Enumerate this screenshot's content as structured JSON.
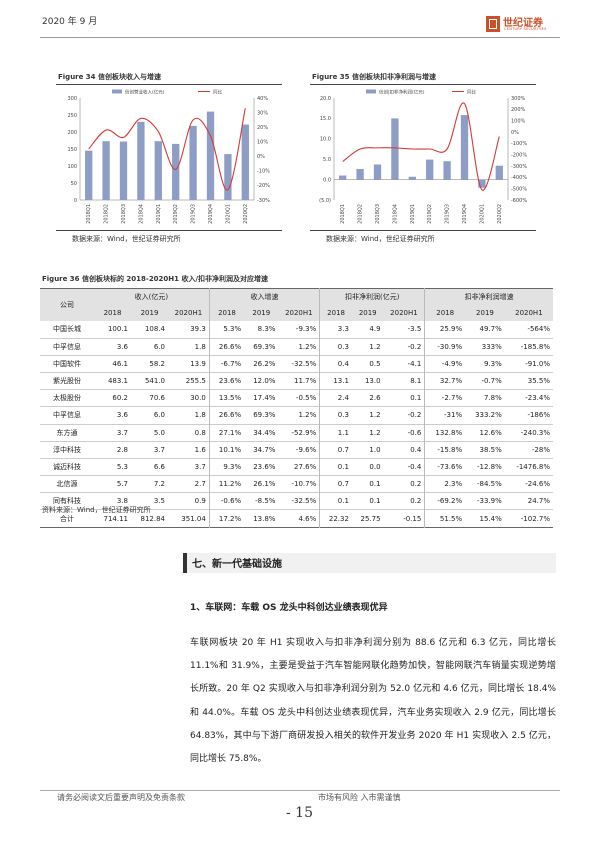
{
  "header": {
    "date": "2020 年 9 月",
    "logo_cn": "世纪证券",
    "logo_en": "CENTURY SECURITIES"
  },
  "figure34": {
    "title": "Figure 34 信创板块收入与增速",
    "source": "数据来源：Wind，世纪证券研究所"
  },
  "figure35": {
    "title": "Figure 35 信创板块扣非净利润与增速",
    "source": "数据来源：Wind，世纪证券研究所"
  },
  "chart_data": [
    {
      "type": "bar",
      "title": "Figure 34 信创板块收入与增速",
      "categories": [
        "2018Q1",
        "2018Q2",
        "2018Q3",
        "2018Q4",
        "2019Q1",
        "2019Q2",
        "2019Q3",
        "2019Q4",
        "2020Q1",
        "2020Q2"
      ],
      "series": [
        {
          "name": "信创营业收入(亿元)",
          "type": "bar",
          "axis": "left",
          "color": "#8e9dc6",
          "values": [
            145,
            173,
            172,
            230,
            173,
            165,
            218,
            260,
            135,
            222
          ]
        },
        {
          "name": "同比",
          "type": "line",
          "axis": "right",
          "color": "#d23a35",
          "values": [
            5,
            18,
            13,
            26,
            17,
            -9,
            25,
            14,
            -23,
            33
          ]
        }
      ],
      "ylim": [
        0,
        300
      ],
      "y_ticks": [
        "0",
        "50",
        "100",
        "150",
        "200",
        "250",
        "300"
      ],
      "y2lim": [
        -30,
        40
      ],
      "y2_ticks": [
        "-30%",
        "-20%",
        "-10%",
        "0%",
        "10%",
        "20%",
        "30%",
        "40%"
      ],
      "legend": "top",
      "grid": false
    },
    {
      "type": "bar",
      "title": "Figure 35 信创板块扣非净利润与增速",
      "categories": [
        "2018Q1",
        "2018Q2",
        "2018Q3",
        "2018Q4",
        "2019Q1",
        "2019Q2",
        "2019Q3",
        "2019Q4",
        "2020Q1",
        "2020Q2"
      ],
      "series": [
        {
          "name": "信创|扣非净利润(亿元)",
          "type": "bar",
          "axis": "left",
          "color": "#8e9dc6",
          "values": [
            1.0,
            2.6,
            3.7,
            15.0,
            0.7,
            4.9,
            4.5,
            15.8,
            -2.0,
            3.4
          ]
        },
        {
          "name": "同比",
          "type": "line",
          "axis": "right",
          "color": "#d23a35",
          "values": [
            -260,
            -150,
            -140,
            -140,
            -150,
            -150,
            -150,
            250,
            -510,
            -40
          ]
        }
      ],
      "ylim": [
        -5,
        20
      ],
      "y_ticks": [
        "(5.0)",
        "0.0",
        "5.0",
        "10.0",
        "15.0",
        "20.0"
      ],
      "y2lim": [
        -600,
        300
      ],
      "y2_ticks": [
        "-600%",
        "-500%",
        "-400%",
        "-300%",
        "-200%",
        "-100%",
        "0%",
        "100%",
        "200%",
        "300%"
      ],
      "legend": "top",
      "grid": false
    }
  ],
  "table36": {
    "title": "Figure 36 信创板块标的 2018-2020H1 收入/扣非净利润及对应增速",
    "col_company": "公司",
    "groups": [
      "收入(亿元)",
      "收入增速",
      "扣非净利润(亿元)",
      "扣非净利润增速"
    ],
    "years": [
      "2018",
      "2019",
      "2020H1"
    ],
    "rows": [
      [
        "中国长城",
        "100.1",
        "108.4",
        "39.3",
        "5.3%",
        "8.3%",
        "-9.3%",
        "3.3",
        "4.9",
        "-3.5",
        "25.9%",
        "49.7%",
        "-564%"
      ],
      [
        "中孚信息",
        "3.6",
        "6.0",
        "1.8",
        "26.6%",
        "69.3%",
        "1.2%",
        "0.3",
        "1.2",
        "-0.2",
        "-30.9%",
        "333%",
        "-185.8%"
      ],
      [
        "中国软件",
        "46.1",
        "58.2",
        "13.9",
        "-6.7%",
        "26.2%",
        "-32.5%",
        "0.4",
        "0.5",
        "-4.1",
        "-4.9%",
        "9.3%",
        "-91.0%"
      ],
      [
        "紫光股份",
        "483.1",
        "541.0",
        "255.5",
        "23.6%",
        "12.0%",
        "11.7%",
        "13.1",
        "13.0",
        "8.1",
        "32.7%",
        "-0.7%",
        "35.5%"
      ],
      [
        "太极股份",
        "60.2",
        "70.6",
        "30.0",
        "13.5%",
        "17.4%",
        "-0.5%",
        "2.4",
        "2.6",
        "0.1",
        "-2.7%",
        "7.8%",
        "-23.4%"
      ],
      [
        "中孚信息",
        "3.6",
        "6.0",
        "1.8",
        "26.6%",
        "69.3%",
        "1.2%",
        "0.3",
        "1.2",
        "-0.2",
        "-31%",
        "333.2%",
        "-186%"
      ],
      [
        "东方通",
        "3.7",
        "5.0",
        "0.8",
        "27.1%",
        "34.4%",
        "-52.9%",
        "1.1",
        "1.2",
        "-0.6",
        "132.8%",
        "12.6%",
        "-240.3%"
      ],
      [
        "淳中科技",
        "2.8",
        "3.7",
        "1.6",
        "10.1%",
        "34.7%",
        "-9.6%",
        "0.7",
        "1.0",
        "0.4",
        "-15.8%",
        "38.5%",
        "-28%"
      ],
      [
        "诚迈科技",
        "5.3",
        "6.6",
        "3.7",
        "9.3%",
        "23.6%",
        "27.6%",
        "0.1",
        "0.0",
        "-0.4",
        "-73.6%",
        "-12.8%",
        "-1476.8%"
      ],
      [
        "北信源",
        "5.7",
        "7.2",
        "2.7",
        "11.2%",
        "26.1%",
        "-10.7%",
        "0.7",
        "0.1",
        "0.2",
        "2.3%",
        "-84.5%",
        "-24.6%"
      ],
      [
        "同有科技",
        "3.8",
        "3.5",
        "0.9",
        "-0.6%",
        "-8.5%",
        "-32.5%",
        "0.1",
        "0.1",
        "0.2",
        "-69.2%",
        "-33.9%",
        "24.7%"
      ],
      [
        "合计",
        "714.11",
        "812.84",
        "351.04",
        "17.2%",
        "13.8%",
        "4.6%",
        "22.32",
        "25.75",
        "-0.15",
        "51.5%",
        "15.4%",
        "-102.7%"
      ]
    ],
    "source": "资料来源：Wind，世纪证券研究所"
  },
  "section": {
    "title": "七、新一代基础设施",
    "subtitle": "1、车联网：车载 OS 龙头中科创达业绩表现优异",
    "paragraph": "车联网板块 20 年 H1 实现收入与扣非净利润分别为 88.6 亿元和 6.3 亿元，同比增长 11.1%和 31.9%，主要是受益于汽车智能网联化趋势加快，智能网联汽车销量实现逆势增长所致。20 年 Q2 实现收入与扣非净利润分别为 52.0 亿元和 4.6 亿元，同比增长 18.4%和 44.0%。车载 OS 龙头中科创达业绩表现优异，汽车业务实现收入 2.9 亿元，同比增长 64.83%，其中与下游厂商研发投入相关的软件开发业务 2020 年 H1 实现收入 2.5 亿元，同比增长 75.8%。"
  },
  "footer": {
    "left": "请务必阅读文后重要声明及免责条款",
    "right": "市场有风险 入市需谨慎",
    "page": "- 15"
  }
}
